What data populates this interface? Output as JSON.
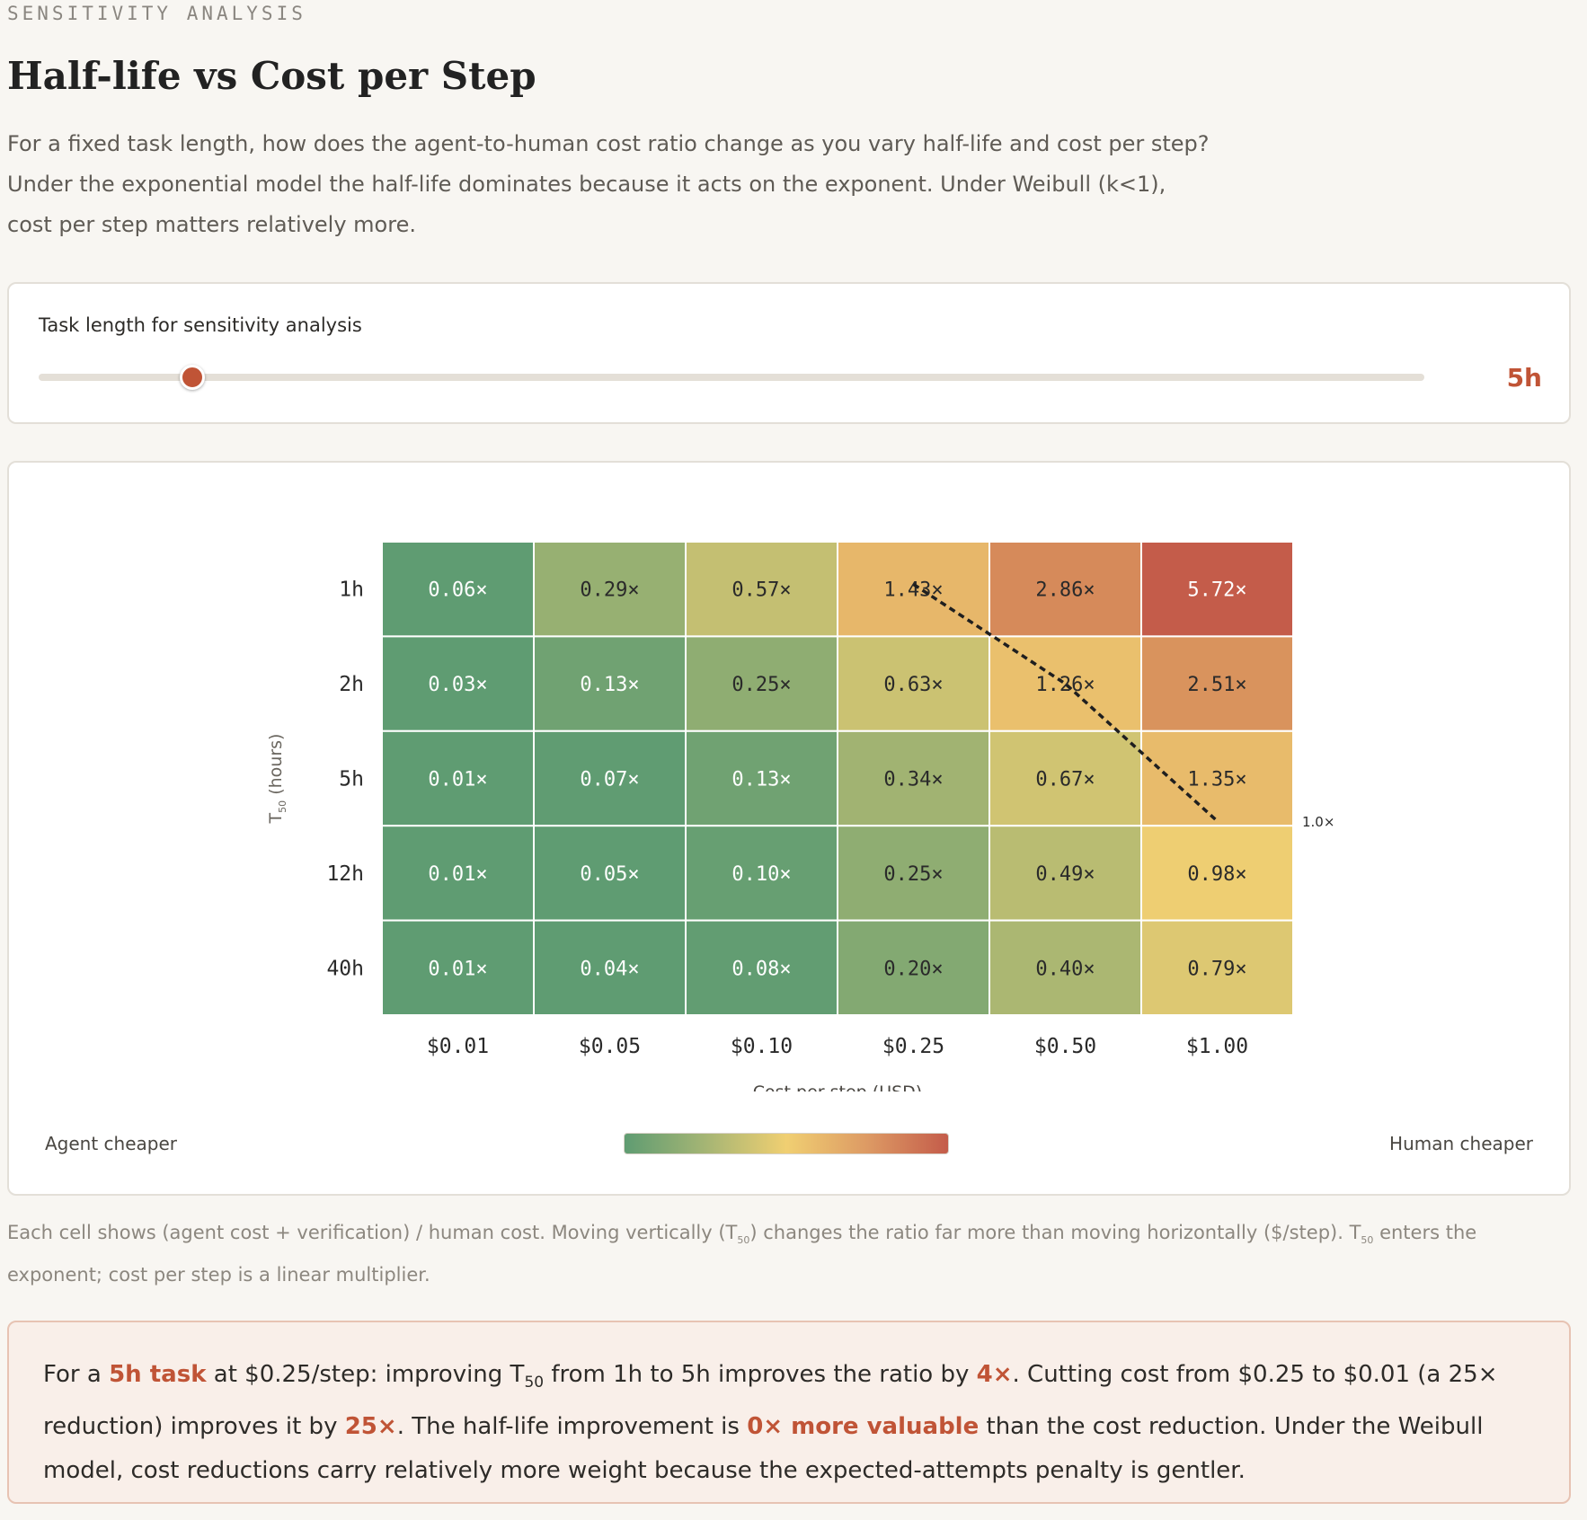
{
  "header": {
    "eyebrow": "SENSITIVITY ANALYSIS",
    "title": "Half-life vs Cost per Step",
    "intro_lines": [
      "For a fixed task length, how does the agent-to-human cost ratio change as you vary half-life and cost per step?",
      "Under the exponential model the half-life dominates because it acts on the exponent. Under Weibull (k<1),",
      "cost per step matters relatively more."
    ]
  },
  "slider": {
    "label": "Task length for sensitivity analysis",
    "value_label": "5h",
    "position_fraction": 0.111
  },
  "chart_data": {
    "type": "heatmap",
    "ylabel_main": "T",
    "ylabel_sub": "50",
    "ylabel_rest": " (hours)",
    "xlabel": "Cost per step (USD)",
    "rows": [
      "1h",
      "2h",
      "5h",
      "12h",
      "40h"
    ],
    "columns": [
      "$0.01",
      "$0.05",
      "$0.10",
      "$0.25",
      "$0.50",
      "$1.00"
    ],
    "values": [
      [
        0.06,
        0.29,
        0.57,
        1.43,
        2.86,
        5.72
      ],
      [
        0.03,
        0.13,
        0.25,
        0.63,
        1.26,
        2.51
      ],
      [
        0.01,
        0.07,
        0.13,
        0.34,
        0.67,
        1.35
      ],
      [
        0.01,
        0.05,
        0.1,
        0.25,
        0.49,
        0.98
      ],
      [
        0.01,
        0.04,
        0.08,
        0.2,
        0.4,
        0.79
      ]
    ],
    "value_suffix": "×",
    "breakeven_label": "1.0×",
    "breakeven_points": [
      {
        "col": 3.5,
        "row": 0.5
      },
      {
        "col": 4.5,
        "row": 1.5
      },
      {
        "col": 5.5,
        "row": 2.5
      }
    ],
    "breakeven_start": {
      "col": 3.5,
      "row": 0.45
    },
    "breakeven_end": {
      "col": 5.5,
      "row": 2.95
    },
    "colors": {
      "low": "#5f9c72",
      "mid": "#f0cf72",
      "high": "#c45c4a"
    }
  },
  "legend": {
    "left": "Agent cheaper",
    "right": "Human cheaper"
  },
  "caption": {
    "part1": "Each cell shows (agent cost + verification) / human cost. Moving vertically (T",
    "sub1": "50",
    "part2": ") changes the ratio far more than moving horizontally ($/step). T",
    "sub2": "50",
    "part3": " enters the exponent; cost per step is a linear multiplier."
  },
  "callout": {
    "t1": "For a ",
    "h1": "5h task",
    "t2": " at $0.25/step: improving T",
    "sub": "50",
    "t3": " from 1h to 5h improves the ratio by ",
    "h2": "4×",
    "t4": ". Cutting cost from $0.25 to $0.01 (a 25× reduction) improves it by ",
    "h3": "25×",
    "t5": ". The half-life improvement is ",
    "h4": "0× more valuable",
    "t6": " than the cost reduction. Under the Weibull model, cost reductions carry relatively more weight because the expected-attempts penalty is gentler."
  }
}
